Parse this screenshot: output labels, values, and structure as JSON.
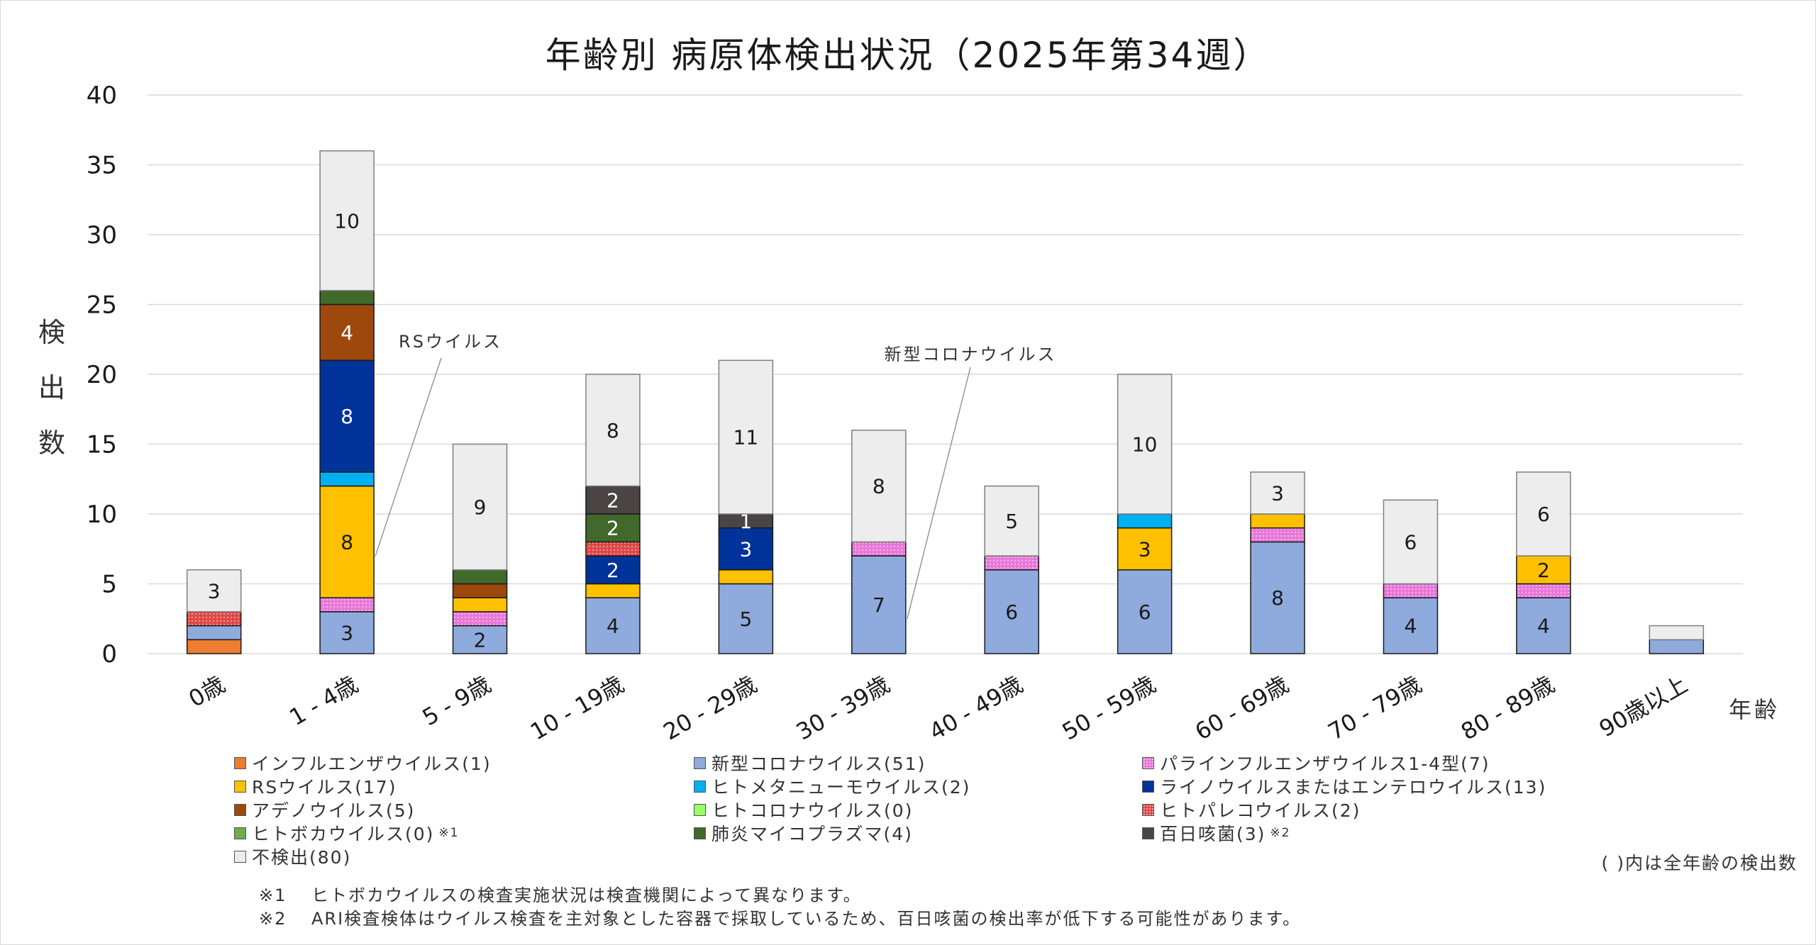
{
  "title": "年齢別 病原体検出状況（2025年第34週）",
  "chart_data": {
    "type": "bar",
    "stacked": true,
    "title": "年齢別 病原体検出状況（2025年第34週）",
    "xlabel": "年齢",
    "ylabel": "検出数",
    "ylim": [
      0,
      40
    ],
    "yticks": [
      0,
      5,
      10,
      15,
      20,
      25,
      30,
      35,
      40
    ],
    "grid": true,
    "legend_position": "bottom",
    "categories": [
      "0歳",
      "1 - 4歳",
      "5 - 9歳",
      "10 - 19歳",
      "20 - 29歳",
      "30 - 39歳",
      "40 - 49歳",
      "50 - 59歳",
      "60 - 69歳",
      "70 - 79歳",
      "80 - 89歳",
      "90歳以上"
    ],
    "series": [
      {
        "key": "flu",
        "name": "インフルエンザウイルス",
        "total": 1,
        "color": "#ED7D31",
        "pattern": false,
        "label_color": "#000000",
        "values": [
          1,
          0,
          0,
          0,
          0,
          0,
          0,
          0,
          0,
          0,
          0,
          0
        ],
        "show_labels": [
          false,
          false,
          false,
          false,
          false,
          false,
          false,
          false,
          false,
          false,
          false,
          false
        ]
      },
      {
        "key": "covid",
        "name": "新型コロナウイルス",
        "total": 51,
        "color": "#8FAADC",
        "pattern": false,
        "label_color": "#1a1a1a",
        "values": [
          1,
          3,
          2,
          4,
          5,
          7,
          6,
          6,
          8,
          4,
          4,
          1
        ],
        "show_labels": [
          false,
          true,
          true,
          true,
          true,
          true,
          true,
          true,
          true,
          true,
          true,
          false
        ]
      },
      {
        "key": "para",
        "name": "パラインフルエンザウイルス1-4型",
        "total": 7,
        "color": "#E878D8",
        "pattern": true,
        "label_color": "#000000",
        "values": [
          0,
          1,
          1,
          0,
          0,
          1,
          1,
          0,
          1,
          1,
          1,
          0
        ],
        "show_labels": [
          false,
          false,
          false,
          false,
          false,
          false,
          false,
          false,
          false,
          false,
          false,
          false
        ]
      },
      {
        "key": "rs",
        "name": "RSウイルス",
        "total": 17,
        "color": "#FFC000",
        "pattern": false,
        "label_color": "#1a1a1a",
        "values": [
          0,
          8,
          1,
          1,
          1,
          0,
          0,
          3,
          1,
          0,
          2,
          0
        ],
        "show_labels": [
          false,
          true,
          false,
          false,
          false,
          false,
          false,
          true,
          false,
          false,
          true,
          false
        ]
      },
      {
        "key": "hmpv",
        "name": "ヒトメタニューモウイルス",
        "total": 2,
        "color": "#00B0F0",
        "pattern": false,
        "label_color": "#000000",
        "values": [
          0,
          1,
          0,
          0,
          0,
          0,
          0,
          1,
          0,
          0,
          0,
          0
        ],
        "show_labels": [
          false,
          false,
          false,
          false,
          false,
          false,
          false,
          false,
          false,
          false,
          false,
          false
        ]
      },
      {
        "key": "rhino",
        "name": "ライノウイルスまたはエンテロウイルス",
        "total": 13,
        "color": "#003399",
        "pattern": false,
        "label_color": "#ffffff",
        "values": [
          0,
          8,
          0,
          2,
          3,
          0,
          0,
          0,
          0,
          0,
          0,
          0
        ],
        "show_labels": [
          false,
          true,
          false,
          true,
          true,
          false,
          false,
          false,
          false,
          false,
          false,
          false
        ]
      },
      {
        "key": "adeno",
        "name": "アデノウイルス",
        "total": 5,
        "color": "#9E480E",
        "pattern": false,
        "label_color": "#ffffff",
        "values": [
          0,
          4,
          1,
          0,
          0,
          0,
          0,
          0,
          0,
          0,
          0,
          0
        ],
        "show_labels": [
          false,
          true,
          false,
          false,
          false,
          false,
          false,
          false,
          false,
          false,
          false,
          false
        ]
      },
      {
        "key": "hcov",
        "name": "ヒトコロナウイルス",
        "total": 0,
        "color": "#99FF66",
        "pattern": false,
        "label_color": "#000000",
        "values": [
          0,
          0,
          0,
          0,
          0,
          0,
          0,
          0,
          0,
          0,
          0,
          0
        ],
        "show_labels": [
          false,
          false,
          false,
          false,
          false,
          false,
          false,
          false,
          false,
          false,
          false,
          false
        ]
      },
      {
        "key": "paleco",
        "name": "ヒトパレコウイルス",
        "total": 2,
        "color": "#E04848",
        "pattern": true,
        "label_color": "#000000",
        "values": [
          1,
          0,
          0,
          1,
          0,
          0,
          0,
          0,
          0,
          0,
          0,
          0
        ],
        "show_labels": [
          false,
          false,
          false,
          false,
          false,
          false,
          false,
          false,
          false,
          false,
          false,
          false
        ]
      },
      {
        "key": "boca",
        "name": "ヒトボカウイルス",
        "total": 0,
        "color": "#70AD47",
        "pattern": false,
        "label_color": "#000000",
        "note": "※1",
        "values": [
          0,
          0,
          0,
          0,
          0,
          0,
          0,
          0,
          0,
          0,
          0,
          0
        ],
        "show_labels": [
          false,
          false,
          false,
          false,
          false,
          false,
          false,
          false,
          false,
          false,
          false,
          false
        ]
      },
      {
        "key": "myco",
        "name": "肺炎マイコプラズマ",
        "total": 4,
        "color": "#41692B",
        "pattern": false,
        "label_color": "#ffffff",
        "values": [
          0,
          1,
          1,
          2,
          0,
          0,
          0,
          0,
          0,
          0,
          0,
          0
        ],
        "show_labels": [
          false,
          false,
          false,
          true,
          false,
          false,
          false,
          false,
          false,
          false,
          false,
          false
        ]
      },
      {
        "key": "pertussis",
        "name": "百日咳菌",
        "total": 3,
        "color": "#4A4444",
        "pattern": false,
        "label_color": "#ffffff",
        "note": "※2",
        "values": [
          0,
          0,
          0,
          2,
          1,
          0,
          0,
          0,
          0,
          0,
          0,
          0
        ],
        "show_labels": [
          false,
          false,
          false,
          true,
          true,
          false,
          false,
          false,
          false,
          false,
          false,
          false
        ]
      },
      {
        "key": "none",
        "name": "不検出",
        "total": 80,
        "color": "#EDEDED",
        "pattern": false,
        "label_color": "#1a1a1a",
        "values": [
          3,
          10,
          9,
          8,
          11,
          8,
          5,
          10,
          3,
          6,
          6,
          1
        ],
        "show_labels": [
          true,
          true,
          true,
          true,
          true,
          true,
          true,
          true,
          true,
          true,
          true,
          false
        ]
      }
    ],
    "annotations": [
      {
        "text": "RSウイルス",
        "category": "1 - 4歳",
        "series": "rs"
      },
      {
        "text": "新型コロナウイルス",
        "category": "30 - 39歳",
        "series": "covid"
      }
    ]
  },
  "legend": {
    "rows": [
      [
        "flu",
        "covid",
        "para"
      ],
      [
        "rs",
        "hmpv",
        "rhino"
      ],
      [
        "adeno",
        "hcov",
        "paleco"
      ],
      [
        "boca",
        "myco",
        "pertussis"
      ],
      [
        "none"
      ]
    ],
    "count_note": "( )内は全年齢の検出数"
  },
  "footnotes": [
    {
      "mark": "※1",
      "text": "ヒトボカウイルスの検査実施状況は検査機関によって異なります。"
    },
    {
      "mark": "※2",
      "text": "ARI検査検体はウイルス検査を主対象とした容器で採取しているため、百日咳菌の検出率が低下する可能性があります。"
    }
  ]
}
